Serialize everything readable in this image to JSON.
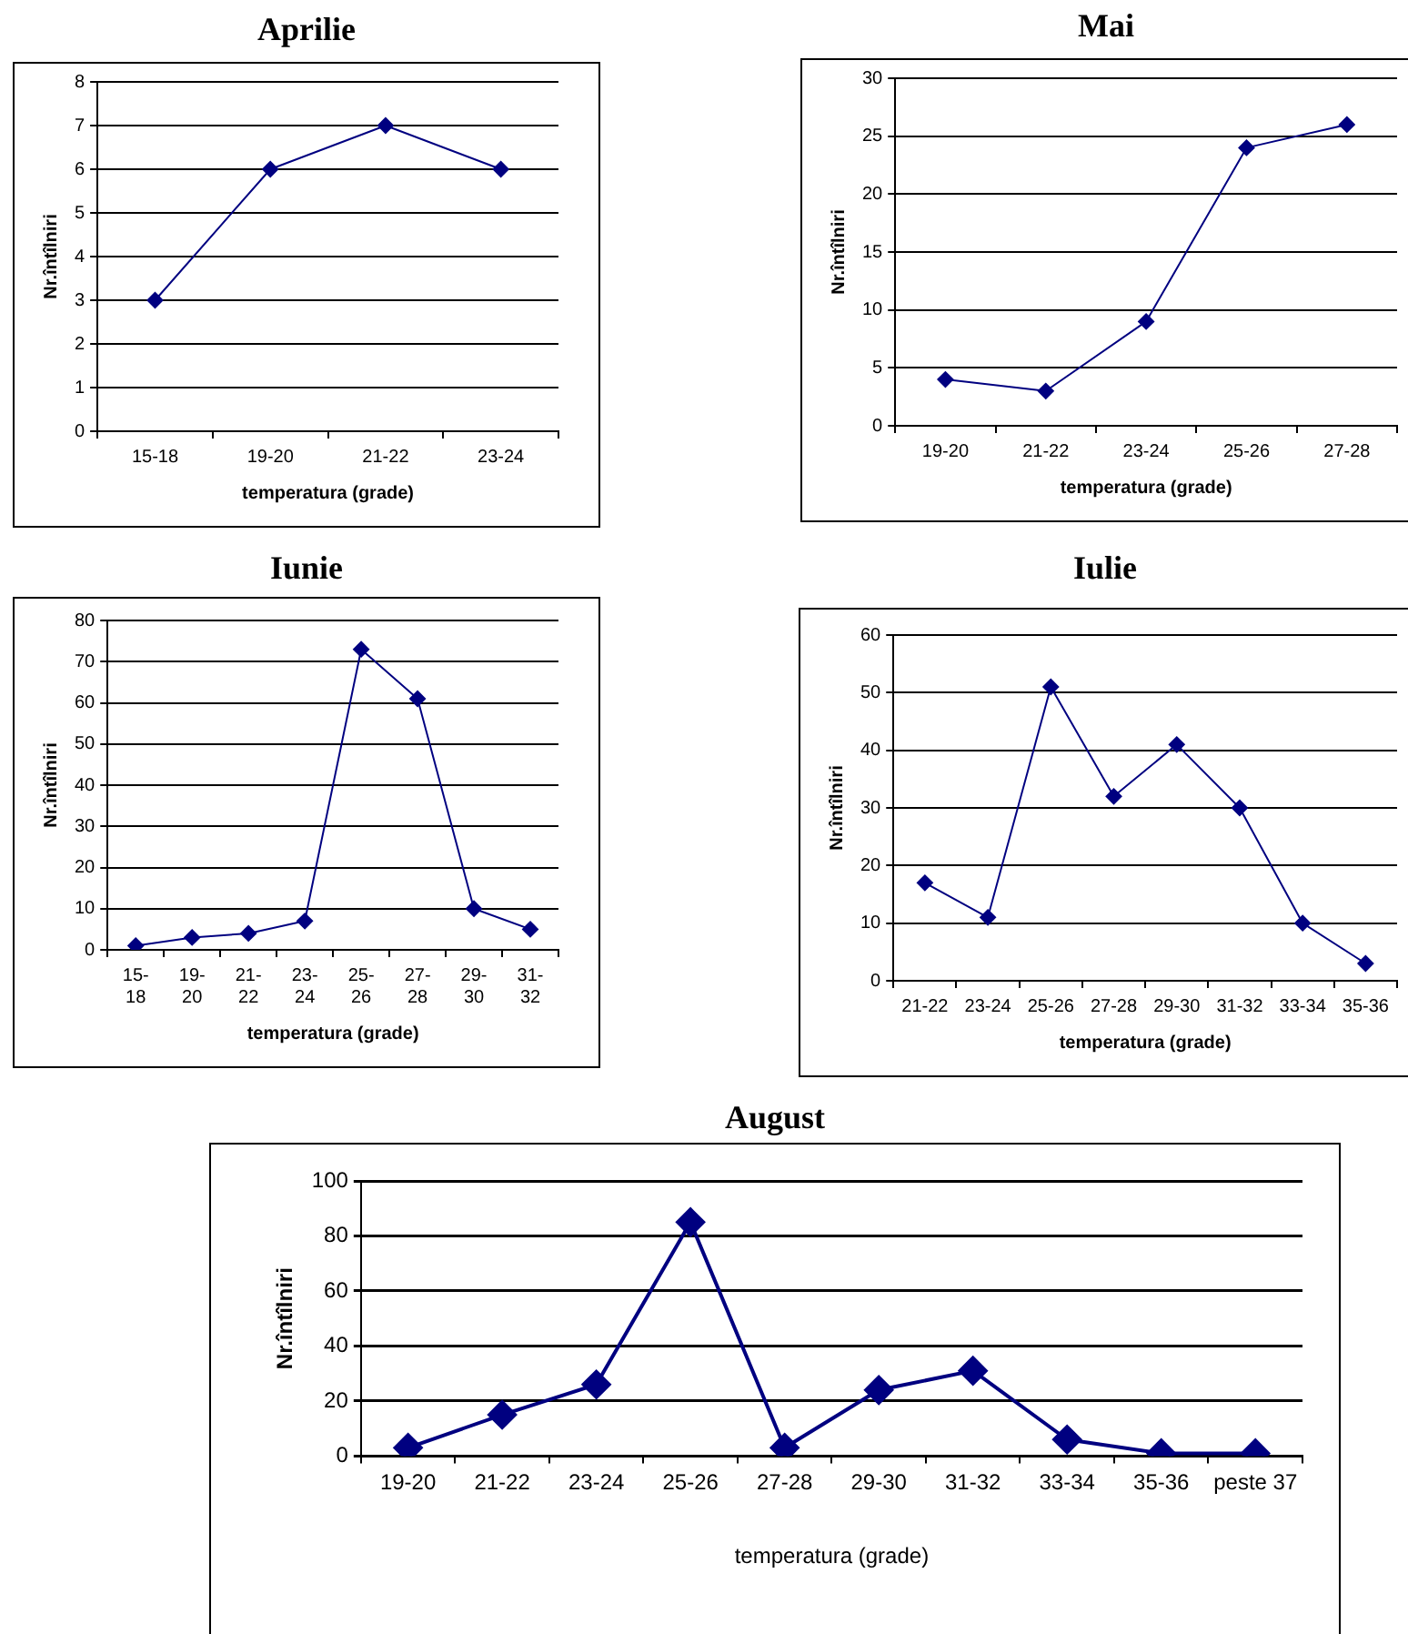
{
  "chart_data": [
    {
      "type": "line",
      "title": "Aprilie",
      "xlabel": "temperatura (grade)",
      "ylabel": "Nr.întîlniri",
      "categories": [
        "15-18",
        "19-20",
        "21-22",
        "23-24"
      ],
      "series": [
        {
          "color": "#000080",
          "values": [
            3,
            6,
            7,
            6
          ]
        }
      ],
      "ylim": [
        0,
        8
      ],
      "yticks": [
        0,
        1,
        2,
        3,
        4,
        5,
        6,
        7,
        8
      ],
      "grid": "y",
      "legend": false,
      "marker": "diamond",
      "line_style": "solid"
    },
    {
      "type": "line",
      "title": "Mai",
      "xlabel": "temperatura (grade)",
      "ylabel": "Nr.întîlniri",
      "categories": [
        "19-20",
        "21-22",
        "23-24",
        "25-26",
        "27-28"
      ],
      "series": [
        {
          "color": "#000080",
          "values": [
            4,
            3,
            9,
            24,
            26
          ]
        }
      ],
      "ylim": [
        0,
        30
      ],
      "yticks": [
        0,
        5,
        10,
        15,
        20,
        25,
        30
      ],
      "grid": "y",
      "legend": false,
      "marker": "diamond",
      "line_style": "solid"
    },
    {
      "type": "line",
      "title": "Iunie",
      "xlabel": "temperatura (grade)",
      "ylabel": "Nr.întîlniri",
      "categories": [
        "15-18",
        "19-20",
        "21-22",
        "23-24",
        "25-26",
        "27-28",
        "29-30",
        "31-32"
      ],
      "series": [
        {
          "color": "#000080",
          "values": [
            1,
            3,
            4,
            7,
            73,
            61,
            10,
            5
          ]
        }
      ],
      "ylim": [
        0,
        80
      ],
      "yticks": [
        0,
        10,
        20,
        30,
        40,
        50,
        60,
        70,
        80
      ],
      "grid": "y",
      "legend": false,
      "marker": "diamond",
      "line_style": "solid"
    },
    {
      "type": "line",
      "title": "Iulie",
      "xlabel": "temperatura (grade)",
      "ylabel": "Nr.întîlniri",
      "categories": [
        "21-22",
        "23-24",
        "25-26",
        "27-28",
        "29-30",
        "31-32",
        "33-34",
        "35-36"
      ],
      "series": [
        {
          "color": "#000080",
          "values": [
            17,
            11,
            51,
            32,
            41,
            30,
            10,
            3
          ]
        }
      ],
      "ylim": [
        0,
        60
      ],
      "yticks": [
        0,
        10,
        20,
        30,
        40,
        50,
        60
      ],
      "grid": "y",
      "legend": false,
      "marker": "diamond",
      "line_style": "solid"
    },
    {
      "type": "line",
      "title": "August",
      "xlabel": "temperatura (grade)",
      "ylabel": "Nr.întîlniri",
      "categories": [
        "19-20",
        "21-22",
        "23-24",
        "25-26",
        "27-28",
        "29-30",
        "31-32",
        "33-34",
        "35-36",
        "peste 37"
      ],
      "series": [
        {
          "color": "#000080",
          "values": [
            3,
            15,
            26,
            85,
            3,
            24,
            31,
            6,
            1,
            1
          ]
        }
      ],
      "ylim": [
        0,
        100
      ],
      "yticks": [
        0,
        20,
        40,
        60,
        80,
        100
      ],
      "grid": "y",
      "legend": false,
      "marker": "diamond",
      "line_style": "solid"
    }
  ]
}
